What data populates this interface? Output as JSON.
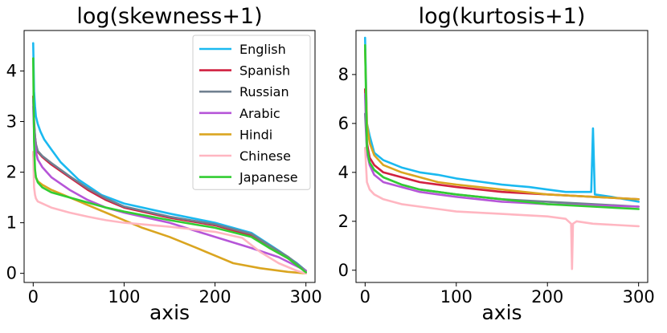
{
  "chart_data": [
    {
      "type": "line",
      "title": "log(skewness+1)",
      "xlabel": "axis",
      "ylabel": "",
      "xlim": [
        -10,
        310
      ],
      "ylim": [
        -0.18,
        4.8
      ],
      "xticks": [
        0,
        100,
        200,
        300
      ],
      "yticks": [
        0,
        1,
        2,
        3,
        4
      ],
      "legend_position": "upper-right",
      "series": [
        {
          "name": "English",
          "color": "#1ab9f0",
          "x": [
            0,
            1,
            2,
            3,
            5,
            8,
            12,
            20,
            30,
            50,
            75,
            100,
            150,
            200,
            240,
            270,
            290,
            300
          ],
          "y": [
            4.55,
            3.6,
            3.3,
            3.1,
            2.95,
            2.8,
            2.65,
            2.45,
            2.2,
            1.85,
            1.55,
            1.38,
            1.18,
            1.0,
            0.8,
            0.45,
            0.2,
            0.05
          ]
        },
        {
          "name": "Spanish",
          "color": "#d12040",
          "x": [
            0,
            1,
            2,
            3,
            5,
            10,
            20,
            40,
            60,
            80,
            100,
            150,
            200,
            240,
            260,
            280,
            300
          ],
          "y": [
            3.5,
            3.0,
            2.7,
            2.55,
            2.4,
            2.3,
            2.15,
            1.9,
            1.65,
            1.45,
            1.3,
            1.1,
            0.95,
            0.75,
            0.5,
            0.3,
            0.05
          ]
        },
        {
          "name": "Russian",
          "color": "#708090",
          "x": [
            0,
            1,
            2,
            3,
            5,
            10,
            20,
            40,
            60,
            80,
            100,
            150,
            200,
            240,
            260,
            280,
            300
          ],
          "y": [
            3.45,
            2.95,
            2.7,
            2.55,
            2.42,
            2.32,
            2.18,
            1.92,
            1.68,
            1.48,
            1.32,
            1.12,
            0.97,
            0.78,
            0.55,
            0.33,
            0.05
          ]
        },
        {
          "name": "Arabic",
          "color": "#b655d8",
          "x": [
            0,
            1,
            2,
            3,
            5,
            10,
            20,
            40,
            60,
            80,
            100,
            150,
            200,
            240,
            270,
            300
          ],
          "y": [
            3.3,
            2.8,
            2.55,
            2.4,
            2.25,
            2.1,
            1.9,
            1.65,
            1.45,
            1.3,
            1.2,
            1.0,
            0.72,
            0.5,
            0.32,
            0.05
          ]
        },
        {
          "name": "Hindi",
          "color": "#daa520",
          "x": [
            0,
            1,
            2,
            3,
            5,
            10,
            20,
            40,
            60,
            80,
            100,
            120,
            150,
            180,
            200,
            220,
            250,
            280,
            300
          ],
          "y": [
            2.35,
            2.2,
            2.0,
            1.9,
            1.82,
            1.75,
            1.65,
            1.5,
            1.35,
            1.2,
            1.05,
            0.9,
            0.72,
            0.5,
            0.35,
            0.2,
            0.1,
            0.03,
            0.0
          ]
        },
        {
          "name": "Chinese",
          "color": "#ffb6c1",
          "x": [
            0,
            1,
            2,
            3,
            5,
            10,
            20,
            40,
            60,
            80,
            100,
            150,
            200,
            230,
            250,
            270,
            290,
            300
          ],
          "y": [
            2.4,
            1.7,
            1.55,
            1.48,
            1.42,
            1.38,
            1.3,
            1.2,
            1.12,
            1.05,
            1.0,
            0.92,
            0.82,
            0.7,
            0.42,
            0.2,
            0.05,
            0.0
          ]
        },
        {
          "name": "Japanese",
          "color": "#32cd32",
          "x": [
            0,
            1,
            2,
            3,
            5,
            10,
            20,
            40,
            60,
            80,
            100,
            150,
            200,
            240,
            260,
            280,
            300
          ],
          "y": [
            4.25,
            2.6,
            2.05,
            1.9,
            1.8,
            1.7,
            1.6,
            1.5,
            1.4,
            1.3,
            1.22,
            1.05,
            0.9,
            0.72,
            0.5,
            0.3,
            0.02
          ]
        }
      ]
    },
    {
      "type": "line",
      "title": "log(kurtosis+1)",
      "xlabel": "axis",
      "ylabel": "",
      "xlim": [
        -10,
        310
      ],
      "ylim": [
        -0.5,
        9.8
      ],
      "xticks": [
        0,
        100,
        200,
        300
      ],
      "yticks": [
        0,
        2,
        4,
        6,
        8
      ],
      "series": [
        {
          "name": "English",
          "color": "#1ab9f0",
          "x": [
            0,
            2,
            5,
            10,
            20,
            40,
            60,
            80,
            100,
            120,
            150,
            180,
            200,
            220,
            248,
            249,
            250,
            251,
            252,
            270,
            300
          ],
          "y": [
            9.5,
            6.0,
            5.5,
            4.8,
            4.5,
            4.2,
            4.0,
            3.9,
            3.75,
            3.65,
            3.5,
            3.4,
            3.3,
            3.2,
            3.2,
            4.5,
            5.8,
            4.4,
            3.1,
            3.0,
            2.8
          ]
        },
        {
          "name": "Spanish",
          "color": "#d12040",
          "x": [
            0,
            2,
            5,
            10,
            20,
            40,
            60,
            80,
            100,
            150,
            200,
            250,
            300
          ],
          "y": [
            7.4,
            5.2,
            4.6,
            4.3,
            4.0,
            3.8,
            3.6,
            3.5,
            3.4,
            3.2,
            3.1,
            3.0,
            2.9
          ]
        },
        {
          "name": "Russian",
          "color": "#708090",
          "x": [
            0,
            2,
            5,
            10,
            20,
            40,
            60,
            80,
            100,
            150,
            200,
            250,
            300
          ],
          "y": [
            6.4,
            4.9,
            4.4,
            4.1,
            3.8,
            3.5,
            3.3,
            3.2,
            3.1,
            2.9,
            2.8,
            2.7,
            2.6
          ]
        },
        {
          "name": "Arabic",
          "color": "#b655d8",
          "x": [
            0,
            2,
            5,
            10,
            20,
            40,
            60,
            80,
            100,
            150,
            200,
            250,
            300
          ],
          "y": [
            7.2,
            4.8,
            4.3,
            3.9,
            3.6,
            3.4,
            3.2,
            3.1,
            3.0,
            2.8,
            2.7,
            2.65,
            2.6
          ]
        },
        {
          "name": "Hindi",
          "color": "#daa520",
          "x": [
            0,
            2,
            5,
            10,
            20,
            40,
            60,
            80,
            100,
            150,
            200,
            250,
            300
          ],
          "y": [
            9.0,
            6.0,
            5.2,
            4.7,
            4.3,
            4.0,
            3.8,
            3.6,
            3.5,
            3.3,
            3.1,
            3.0,
            2.9
          ]
        },
        {
          "name": "Chinese",
          "color": "#ffb6c1",
          "x": [
            0,
            2,
            5,
            10,
            20,
            40,
            60,
            80,
            100,
            150,
            200,
            220,
            226,
            227,
            228,
            232,
            250,
            300
          ],
          "y": [
            5.0,
            3.6,
            3.3,
            3.1,
            2.9,
            2.7,
            2.6,
            2.5,
            2.4,
            2.3,
            2.2,
            2.1,
            1.9,
            0.05,
            1.9,
            2.0,
            1.9,
            1.8
          ]
        },
        {
          "name": "Japanese",
          "color": "#32cd32",
          "x": [
            0,
            2,
            5,
            10,
            20,
            40,
            60,
            80,
            100,
            150,
            200,
            250,
            300
          ],
          "y": [
            9.2,
            5.0,
            4.4,
            4.1,
            3.8,
            3.5,
            3.3,
            3.2,
            3.1,
            2.9,
            2.7,
            2.6,
            2.5
          ]
        }
      ]
    }
  ]
}
